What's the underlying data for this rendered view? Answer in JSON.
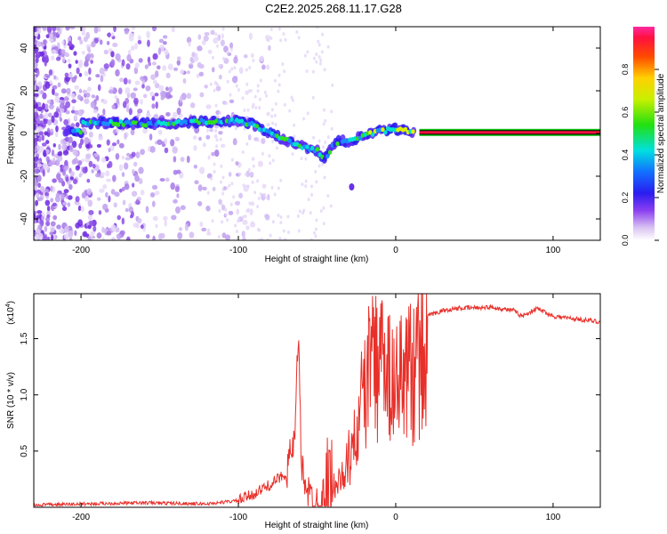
{
  "title": "C2E2.2025.268.11.17.G28",
  "chart_data": [
    {
      "type": "heatmap",
      "name": "spectrogram",
      "xlabel": "Height of straight line (km)",
      "ylabel": "Frequency (Hz)",
      "xlim": [
        -230,
        130
      ],
      "ylim": [
        -50,
        50
      ],
      "xticks": [
        -200,
        -100,
        0,
        100
      ],
      "yticks": [
        -40,
        -20,
        0,
        20,
        40
      ],
      "colorbar": {
        "label": "Normalized spectral amplitude",
        "ticks": [
          0.0,
          0.2,
          0.4,
          0.6,
          0.8
        ],
        "range": [
          0,
          1
        ]
      },
      "ridge": [
        {
          "x": -200,
          "y": 5
        },
        {
          "x": -180,
          "y": 5
        },
        {
          "x": -160,
          "y": 4.5
        },
        {
          "x": -140,
          "y": 5
        },
        {
          "x": -120,
          "y": 5.5
        },
        {
          "x": -100,
          "y": 6
        },
        {
          "x": -90,
          "y": 4
        },
        {
          "x": -80,
          "y": 0
        },
        {
          "x": -70,
          "y": -3
        },
        {
          "x": -60,
          "y": -6
        },
        {
          "x": -50,
          "y": -8
        },
        {
          "x": -45,
          "y": -12
        },
        {
          "x": -40,
          "y": -6
        },
        {
          "x": -35,
          "y": -3
        },
        {
          "x": -30,
          "y": -4
        },
        {
          "x": -20,
          "y": -1
        },
        {
          "x": -10,
          "y": 1
        },
        {
          "x": 0,
          "y": 2
        },
        {
          "x": 10,
          "y": 1
        }
      ],
      "line": {
        "from": 15,
        "to": 130,
        "y": 0.5
      }
    },
    {
      "type": "line",
      "name": "snr",
      "xlabel": "Height of straight line (km)",
      "ylabel": "SNR (10 * v/v)",
      "yscale_label": "(x10",
      "yscale_exp": "4",
      "yscale_close": ")",
      "xlim": [
        -230,
        130
      ],
      "ylim": [
        0,
        1.9
      ],
      "xticks": [
        -200,
        -100,
        0,
        100
      ],
      "yticks": [
        0.5,
        1.0,
        1.5
      ],
      "series": [
        {
          "name": "SNR",
          "color": "#e8302a",
          "points": [
            [
              -230,
              0.02
            ],
            [
              -200,
              0.03
            ],
            [
              -160,
              0.04
            ],
            [
              -120,
              0.03
            ],
            [
              -100,
              0.06
            ],
            [
              -90,
              0.12
            ],
            [
              -80,
              0.2
            ],
            [
              -70,
              0.3
            ],
            [
              -64,
              0.6
            ],
            [
              -62,
              1.5
            ],
            [
              -60,
              0.4
            ],
            [
              -55,
              0.1
            ],
            [
              -50,
              0.05
            ],
            [
              -40,
              0.15
            ],
            [
              -30,
              0.5
            ],
            [
              -25,
              0.8
            ],
            [
              -20,
              1.3
            ],
            [
              -15,
              1.6
            ],
            [
              -10,
              1.5
            ],
            [
              0,
              1.3
            ],
            [
              10,
              1.5
            ],
            [
              20,
              1.7
            ],
            [
              30,
              1.75
            ],
            [
              40,
              1.77
            ],
            [
              60,
              1.78
            ],
            [
              75,
              1.75
            ],
            [
              80,
              1.7
            ],
            [
              90,
              1.77
            ],
            [
              100,
              1.7
            ],
            [
              130,
              1.65
            ]
          ]
        }
      ]
    }
  ]
}
